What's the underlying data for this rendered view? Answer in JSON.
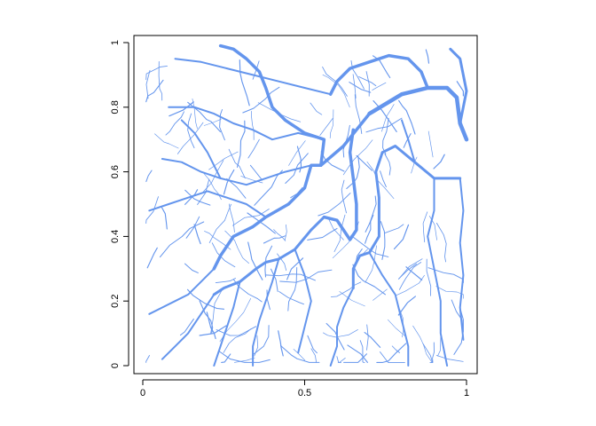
{
  "chart_data": {
    "type": "line",
    "title": "",
    "xlabel": "",
    "ylabel": "",
    "xlim": [
      0,
      1
    ],
    "ylim": [
      0,
      1
    ],
    "grid": false,
    "legend": "none",
    "line_color": "#6495ED",
    "x_ticks": [
      {
        "value": 0,
        "label": "0"
      },
      {
        "value": 0.5,
        "label": "0.5"
      },
      {
        "value": 1,
        "label": "1"
      }
    ],
    "y_ticks": [
      {
        "value": 0,
        "label": "0"
      },
      {
        "value": 0.2,
        "label": "0.2"
      },
      {
        "value": 0.4,
        "label": "0.4"
      },
      {
        "value": 0.6,
        "label": "0.6"
      },
      {
        "value": 0.8,
        "label": "0.8"
      },
      {
        "value": 1,
        "label": "1"
      }
    ],
    "main_channels": [
      {
        "width": 4.5,
        "points": [
          [
            0.7,
            0.78
          ],
          [
            0.8,
            0.84
          ],
          [
            0.88,
            0.86
          ],
          [
            0.94,
            0.86
          ],
          [
            0.97,
            0.83
          ],
          [
            0.98,
            0.75
          ],
          [
            1.0,
            0.7
          ]
        ]
      },
      {
        "width": 3.5,
        "points": [
          [
            0.65,
            0.73
          ],
          [
            0.64,
            0.66
          ],
          [
            0.65,
            0.58
          ],
          [
            0.66,
            0.5
          ],
          [
            0.66,
            0.42
          ],
          [
            0.64,
            0.39
          ],
          [
            0.62,
            0.42
          ],
          [
            0.6,
            0.45
          ],
          [
            0.56,
            0.46
          ]
        ]
      },
      {
        "width": 3.5,
        "points": [
          [
            0.7,
            0.78
          ],
          [
            0.66,
            0.73
          ],
          [
            0.62,
            0.68
          ],
          [
            0.55,
            0.62
          ],
          [
            0.52,
            0.62
          ],
          [
            0.5,
            0.55
          ],
          [
            0.45,
            0.5
          ],
          [
            0.38,
            0.46
          ],
          [
            0.34,
            0.43
          ],
          [
            0.28,
            0.4
          ],
          [
            0.24,
            0.34
          ],
          [
            0.22,
            0.3
          ]
        ]
      },
      {
        "width": 3.0,
        "points": [
          [
            0.74,
            0.66
          ],
          [
            0.78,
            0.68
          ],
          [
            0.84,
            0.63
          ],
          [
            0.9,
            0.58
          ],
          [
            0.98,
            0.58
          ]
        ]
      },
      {
        "width": 3.0,
        "points": [
          [
            0.74,
            0.66
          ],
          [
            0.72,
            0.6
          ],
          [
            0.73,
            0.52
          ],
          [
            0.73,
            0.4
          ],
          [
            0.7,
            0.35
          ],
          [
            0.67,
            0.34
          ],
          [
            0.65,
            0.3
          ],
          [
            0.65,
            0.24
          ]
        ]
      },
      {
        "width": 3.0,
        "points": [
          [
            0.56,
            0.46
          ],
          [
            0.52,
            0.42
          ],
          [
            0.47,
            0.36
          ],
          [
            0.42,
            0.33
          ],
          [
            0.38,
            0.32
          ],
          [
            0.35,
            0.3
          ],
          [
            0.3,
            0.26
          ],
          [
            0.25,
            0.24
          ],
          [
            0.22,
            0.22
          ]
        ]
      },
      {
        "width": 3.5,
        "points": [
          [
            0.55,
            0.62
          ],
          [
            0.56,
            0.7
          ],
          [
            0.5,
            0.72
          ],
          [
            0.44,
            0.76
          ],
          [
            0.4,
            0.8
          ],
          [
            0.38,
            0.86
          ],
          [
            0.36,
            0.91
          ],
          [
            0.32,
            0.95
          ],
          [
            0.28,
            0.98
          ],
          [
            0.24,
            0.99
          ]
        ]
      },
      {
        "width": 3.5,
        "points": [
          [
            0.88,
            0.86
          ],
          [
            0.86,
            0.91
          ],
          [
            0.82,
            0.95
          ],
          [
            0.76,
            0.96
          ],
          [
            0.7,
            0.94
          ],
          [
            0.64,
            0.92
          ],
          [
            0.6,
            0.88
          ],
          [
            0.58,
            0.84
          ]
        ]
      },
      {
        "width": 3.0,
        "points": [
          [
            0.98,
            0.75
          ],
          [
            1.0,
            0.85
          ],
          [
            0.98,
            0.95
          ],
          [
            0.95,
            0.98
          ]
        ]
      },
      {
        "width": 2.0,
        "points": [
          [
            0.52,
            0.62
          ],
          [
            0.44,
            0.6
          ],
          [
            0.38,
            0.58
          ],
          [
            0.32,
            0.56
          ],
          [
            0.24,
            0.58
          ],
          [
            0.18,
            0.6
          ],
          [
            0.12,
            0.63
          ],
          [
            0.06,
            0.64
          ]
        ]
      },
      {
        "width": 2.0,
        "points": [
          [
            0.56,
            0.7
          ],
          [
            0.48,
            0.72
          ],
          [
            0.4,
            0.7
          ],
          [
            0.34,
            0.73
          ],
          [
            0.28,
            0.75
          ],
          [
            0.22,
            0.78
          ],
          [
            0.16,
            0.8
          ],
          [
            0.08,
            0.8
          ]
        ]
      },
      {
        "width": 2.0,
        "points": [
          [
            0.58,
            0.84
          ],
          [
            0.5,
            0.86
          ],
          [
            0.42,
            0.88
          ],
          [
            0.34,
            0.9
          ],
          [
            0.26,
            0.92
          ],
          [
            0.18,
            0.94
          ],
          [
            0.1,
            0.95
          ]
        ]
      },
      {
        "width": 2.0,
        "points": [
          [
            0.38,
            0.46
          ],
          [
            0.32,
            0.5
          ],
          [
            0.26,
            0.52
          ],
          [
            0.2,
            0.54
          ],
          [
            0.14,
            0.52
          ],
          [
            0.08,
            0.5
          ],
          [
            0.02,
            0.48
          ]
        ]
      },
      {
        "width": 2.0,
        "points": [
          [
            0.42,
            0.33
          ],
          [
            0.4,
            0.26
          ],
          [
            0.38,
            0.2
          ],
          [
            0.36,
            0.14
          ],
          [
            0.34,
            0.06
          ],
          [
            0.34,
            0.0
          ]
        ]
      },
      {
        "width": 2.0,
        "points": [
          [
            0.3,
            0.26
          ],
          [
            0.28,
            0.18
          ],
          [
            0.26,
            0.12
          ],
          [
            0.24,
            0.06
          ],
          [
            0.22,
            0.0
          ]
        ]
      },
      {
        "width": 2.0,
        "points": [
          [
            0.65,
            0.24
          ],
          [
            0.62,
            0.18
          ],
          [
            0.6,
            0.12
          ],
          [
            0.6,
            0.06
          ],
          [
            0.58,
            0.0
          ]
        ]
      },
      {
        "width": 2.0,
        "points": [
          [
            0.7,
            0.35
          ],
          [
            0.74,
            0.28
          ],
          [
            0.78,
            0.22
          ],
          [
            0.8,
            0.14
          ],
          [
            0.82,
            0.06
          ],
          [
            0.82,
            0.0
          ]
        ]
      },
      {
        "width": 2.0,
        "points": [
          [
            0.9,
            0.58
          ],
          [
            0.9,
            0.48
          ],
          [
            0.88,
            0.4
          ],
          [
            0.9,
            0.3
          ],
          [
            0.92,
            0.2
          ],
          [
            0.92,
            0.1
          ],
          [
            0.94,
            0.0
          ]
        ]
      },
      {
        "width": 2.0,
        "points": [
          [
            0.98,
            0.58
          ],
          [
            0.99,
            0.48
          ],
          [
            0.98,
            0.38
          ],
          [
            0.99,
            0.28
          ],
          [
            0.98,
            0.18
          ],
          [
            0.99,
            0.08
          ]
        ]
      },
      {
        "width": 2.0,
        "points": [
          [
            0.22,
            0.3
          ],
          [
            0.18,
            0.26
          ],
          [
            0.14,
            0.22
          ],
          [
            0.1,
            0.2
          ],
          [
            0.06,
            0.18
          ],
          [
            0.02,
            0.16
          ]
        ]
      },
      {
        "width": 2.0,
        "points": [
          [
            0.22,
            0.22
          ],
          [
            0.18,
            0.16
          ],
          [
            0.14,
            0.1
          ],
          [
            0.1,
            0.06
          ],
          [
            0.06,
            0.02
          ]
        ]
      },
      {
        "width": 2.0,
        "points": [
          [
            0.47,
            0.36
          ],
          [
            0.5,
            0.28
          ],
          [
            0.52,
            0.2
          ],
          [
            0.5,
            0.12
          ],
          [
            0.48,
            0.04
          ]
        ]
      },
      {
        "width": 2.0,
        "points": [
          [
            0.24,
            0.58
          ],
          [
            0.2,
            0.66
          ],
          [
            0.16,
            0.72
          ],
          [
            0.12,
            0.76
          ]
        ]
      },
      {
        "width": 2.0,
        "points": [
          [
            0.84,
            0.63
          ],
          [
            0.82,
            0.7
          ],
          [
            0.8,
            0.76
          ]
        ]
      }
    ]
  }
}
